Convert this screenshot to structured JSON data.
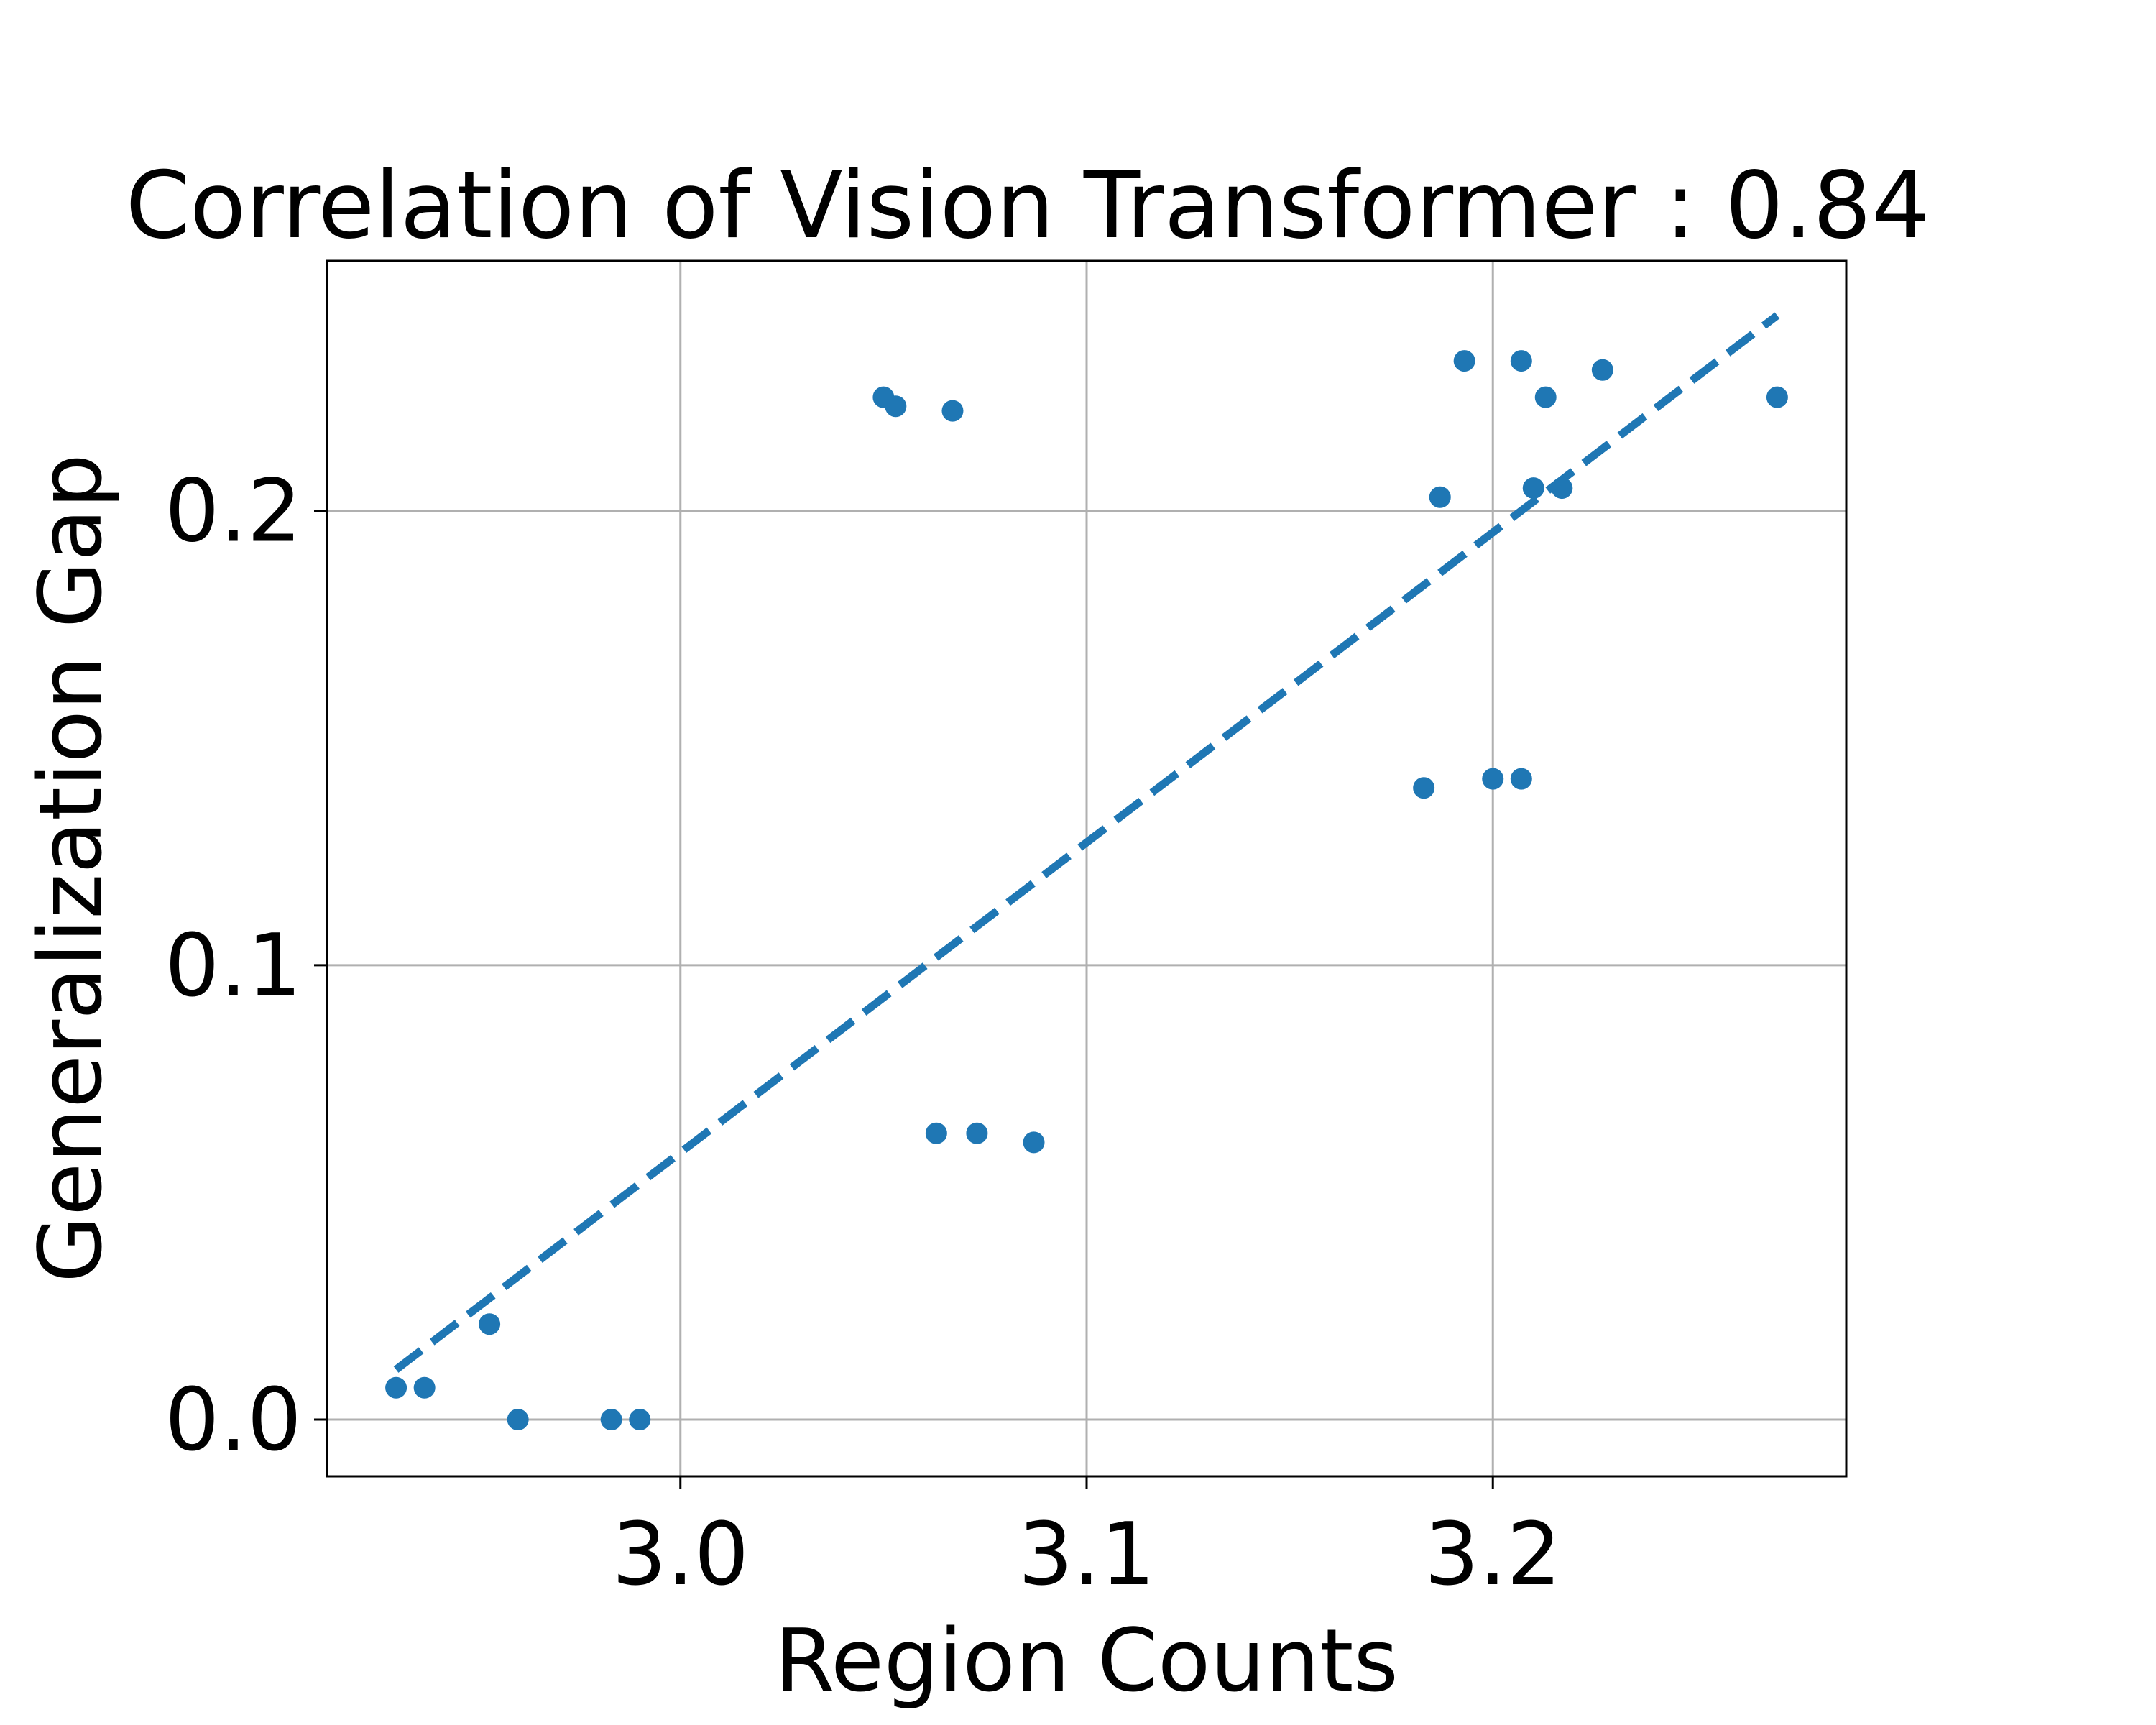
{
  "chart_data": {
    "type": "scatter",
    "title": "Correlation of Vision Transformer : 0.84",
    "xlabel": "Region Counts",
    "ylabel": "Generalization Gap",
    "xlim": [
      2.913,
      3.287
    ],
    "ylim": [
      -0.0125,
      0.255
    ],
    "xticks": [
      3.0,
      3.1,
      3.2
    ],
    "xtick_labels": [
      "3.0",
      "3.1",
      "3.2"
    ],
    "yticks": [
      0.0,
      0.1,
      0.2
    ],
    "ytick_labels": [
      "0.0",
      "0.1",
      "0.2"
    ],
    "grid": true,
    "point_color": "#1f77b4",
    "points": [
      {
        "x": 2.93,
        "y": 0.007
      },
      {
        "x": 2.937,
        "y": 0.007
      },
      {
        "x": 2.953,
        "y": 0.021
      },
      {
        "x": 2.96,
        "y": 0.0
      },
      {
        "x": 2.983,
        "y": 0.0
      },
      {
        "x": 2.99,
        "y": 0.0
      },
      {
        "x": 3.05,
        "y": 0.225
      },
      {
        "x": 3.053,
        "y": 0.223
      },
      {
        "x": 3.067,
        "y": 0.222
      },
      {
        "x": 3.063,
        "y": 0.063
      },
      {
        "x": 3.073,
        "y": 0.063
      },
      {
        "x": 3.087,
        "y": 0.061
      },
      {
        "x": 3.183,
        "y": 0.139
      },
      {
        "x": 3.187,
        "y": 0.203
      },
      {
        "x": 3.193,
        "y": 0.233
      },
      {
        "x": 3.2,
        "y": 0.141
      },
      {
        "x": 3.207,
        "y": 0.141
      },
      {
        "x": 3.207,
        "y": 0.233
      },
      {
        "x": 3.21,
        "y": 0.205
      },
      {
        "x": 3.213,
        "y": 0.225
      },
      {
        "x": 3.217,
        "y": 0.205
      },
      {
        "x": 3.227,
        "y": 0.231
      },
      {
        "x": 3.27,
        "y": 0.225
      }
    ],
    "trend_line": {
      "style": "dashed",
      "color": "#1f77b4",
      "x": [
        2.93,
        3.27
      ],
      "y": [
        0.011,
        0.243
      ]
    }
  }
}
